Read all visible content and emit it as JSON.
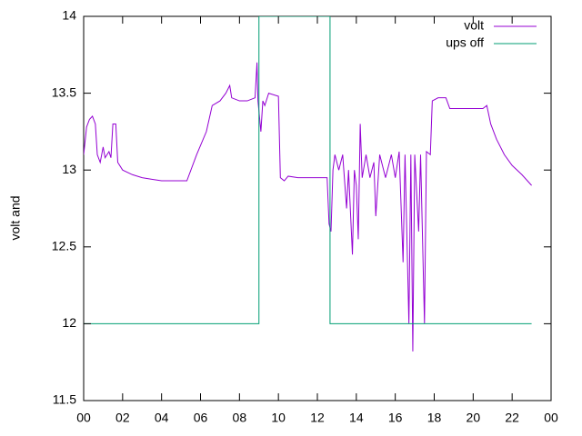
{
  "chart_data": {
    "type": "line",
    "ylabel": "volt and",
    "xlim": [
      0,
      24
    ],
    "ylim": [
      11.5,
      14
    ],
    "xticks": [
      {
        "value": 0,
        "label": "00"
      },
      {
        "value": 2,
        "label": "02"
      },
      {
        "value": 4,
        "label": "04"
      },
      {
        "value": 6,
        "label": "06"
      },
      {
        "value": 8,
        "label": "08"
      },
      10,
      12,
      14,
      16,
      18,
      20,
      22,
      {
        "value": 24,
        "label": "00"
      }
    ],
    "yticks": [
      11.5,
      12,
      12.5,
      13,
      13.5,
      14
    ],
    "legend": "top-right",
    "series": [
      {
        "name": "volt",
        "color": "#9400d3",
        "x": [
          0.0,
          0.15,
          0.3,
          0.45,
          0.6,
          0.7,
          0.85,
          1.0,
          1.1,
          1.3,
          1.4,
          1.5,
          1.65,
          1.75,
          2.0,
          2.5,
          3.0,
          3.5,
          4.0,
          5.3,
          5.8,
          6.3,
          6.6,
          7.0,
          7.3,
          7.5,
          7.6,
          8.0,
          8.4,
          8.8,
          8.9,
          8.95,
          9.1,
          9.2,
          9.3,
          9.5,
          10.0,
          10.1,
          10.3,
          10.5,
          11.0,
          12.5,
          12.6,
          12.7,
          12.8,
          12.9,
          13.1,
          13.3,
          13.5,
          13.6,
          13.8,
          13.9,
          14.0,
          14.1,
          14.2,
          14.3,
          14.5,
          14.7,
          14.9,
          15.0,
          15.2,
          15.5,
          15.8,
          16.0,
          16.2,
          16.4,
          16.5,
          16.7,
          16.8,
          16.9,
          17.0,
          17.2,
          17.3,
          17.5,
          17.6,
          17.8,
          17.9,
          18.2,
          18.6,
          18.8,
          19.5,
          20.5,
          20.7,
          20.9,
          21.2,
          21.6,
          22.0,
          22.5,
          23.0
        ],
        "values": [
          13.1,
          13.28,
          13.33,
          13.35,
          13.3,
          13.1,
          13.05,
          13.15,
          13.08,
          13.12,
          13.08,
          13.3,
          13.3,
          13.05,
          13.0,
          12.97,
          12.95,
          12.94,
          12.93,
          12.93,
          13.1,
          13.25,
          13.42,
          13.45,
          13.5,
          13.55,
          13.47,
          13.45,
          13.45,
          13.47,
          13.7,
          13.45,
          13.25,
          13.45,
          13.42,
          13.5,
          13.48,
          12.95,
          12.93,
          12.96,
          12.95,
          12.95,
          12.65,
          12.6,
          13.0,
          13.1,
          13.0,
          13.1,
          12.75,
          13.0,
          12.45,
          13.0,
          12.9,
          12.55,
          13.3,
          12.95,
          13.1,
          12.95,
          13.05,
          12.7,
          13.1,
          12.95,
          13.1,
          12.95,
          13.12,
          12.4,
          13.1,
          12.0,
          13.1,
          11.82,
          13.1,
          12.6,
          13.1,
          12.0,
          13.12,
          13.1,
          13.45,
          13.47,
          13.47,
          13.4,
          13.4,
          13.4,
          13.42,
          13.3,
          13.2,
          13.1,
          13.03,
          12.97,
          12.9
        ]
      },
      {
        "name": "ups off",
        "color": "#009e73",
        "x": [
          0,
          9.0,
          9.0,
          12.65,
          12.65,
          23.0
        ],
        "values": [
          12,
          12,
          14,
          14,
          12,
          12
        ]
      }
    ]
  }
}
